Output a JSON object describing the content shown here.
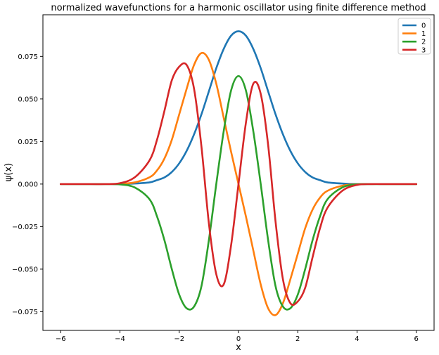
{
  "chart_data": {
    "type": "line",
    "title": "normalized wavefunctions for a harmonic oscillator using finite difference method",
    "xlabel": "x",
    "ylabel": "ψ(x)",
    "xlim": [
      -6.6,
      6.6
    ],
    "ylim": [
      -0.086,
      0.0995
    ],
    "xticks": [
      -6,
      -4,
      -2,
      0,
      2,
      4,
      6
    ],
    "xtick_labels": [
      "−6",
      "−4",
      "−2",
      "0",
      "2",
      "4",
      "6"
    ],
    "yticks": [
      -0.075,
      -0.05,
      -0.025,
      0.0,
      0.025,
      0.05,
      0.075
    ],
    "ytick_labels": [
      "−0.075",
      "−0.050",
      "−0.025",
      "0.000",
      "0.025",
      "0.050",
      "0.075"
    ],
    "grid": false,
    "legend_position": "top-right",
    "x": [
      -6,
      -5,
      -4.5,
      -4,
      -3.5,
      -3,
      -2.75,
      -2.5,
      -2.25,
      -2,
      -1.75,
      -1.5,
      -1.25,
      -1,
      -0.75,
      -0.5,
      -0.25,
      0,
      0.25,
      0.5,
      0.75,
      1,
      1.25,
      1.5,
      1.75,
      2,
      2.25,
      2.5,
      2.75,
      3,
      3.5,
      4,
      4.5,
      5,
      6
    ],
    "series": [
      {
        "name": "0",
        "color": "#1f77b4",
        "values": [
          0,
          0,
          0,
          0.0,
          0.0003,
          0.001,
          0.0023,
          0.0039,
          0.0071,
          0.0122,
          0.0195,
          0.0292,
          0.041,
          0.0545,
          0.0681,
          0.0794,
          0.0872,
          0.0898,
          0.0872,
          0.0794,
          0.0681,
          0.0545,
          0.041,
          0.0292,
          0.0195,
          0.0122,
          0.0071,
          0.0039,
          0.0023,
          0.001,
          0.0003,
          0.0,
          0,
          0,
          0
        ]
      },
      {
        "name": "1",
        "color": "#ff7f0e",
        "values": [
          0,
          0,
          0,
          0.0001,
          0.001,
          0.004,
          0.008,
          0.015,
          0.026,
          0.041,
          0.056,
          0.07,
          0.077,
          0.073,
          0.059,
          0.039,
          0.019,
          0.0,
          -0.019,
          -0.039,
          -0.059,
          -0.073,
          -0.077,
          -0.07,
          -0.056,
          -0.041,
          -0.026,
          -0.015,
          -0.008,
          -0.004,
          -0.001,
          -0.0001,
          0,
          0,
          0
        ]
      },
      {
        "name": "2",
        "color": "#2ca02c",
        "values": [
          0,
          0,
          0,
          -0.0002,
          -0.002,
          -0.009,
          -0.019,
          -0.033,
          -0.05,
          -0.065,
          -0.073,
          -0.072,
          -0.06,
          -0.033,
          0.0,
          0.031,
          0.055,
          0.0635,
          0.055,
          0.031,
          0.0,
          -0.033,
          -0.06,
          -0.072,
          -0.073,
          -0.065,
          -0.05,
          -0.033,
          -0.019,
          -0.009,
          -0.002,
          -0.0002,
          0,
          0,
          0
        ]
      },
      {
        "name": "3",
        "color": "#d62728",
        "values": [
          0,
          0,
          0,
          0.0005,
          0.004,
          0.014,
          0.026,
          0.043,
          0.061,
          0.069,
          0.07,
          0.056,
          0.022,
          -0.023,
          -0.053,
          -0.059,
          -0.036,
          0.0,
          0.036,
          0.059,
          0.053,
          0.023,
          -0.022,
          -0.056,
          -0.07,
          -0.069,
          -0.061,
          -0.043,
          -0.026,
          -0.014,
          -0.004,
          -0.0005,
          0,
          0,
          0
        ]
      }
    ]
  }
}
